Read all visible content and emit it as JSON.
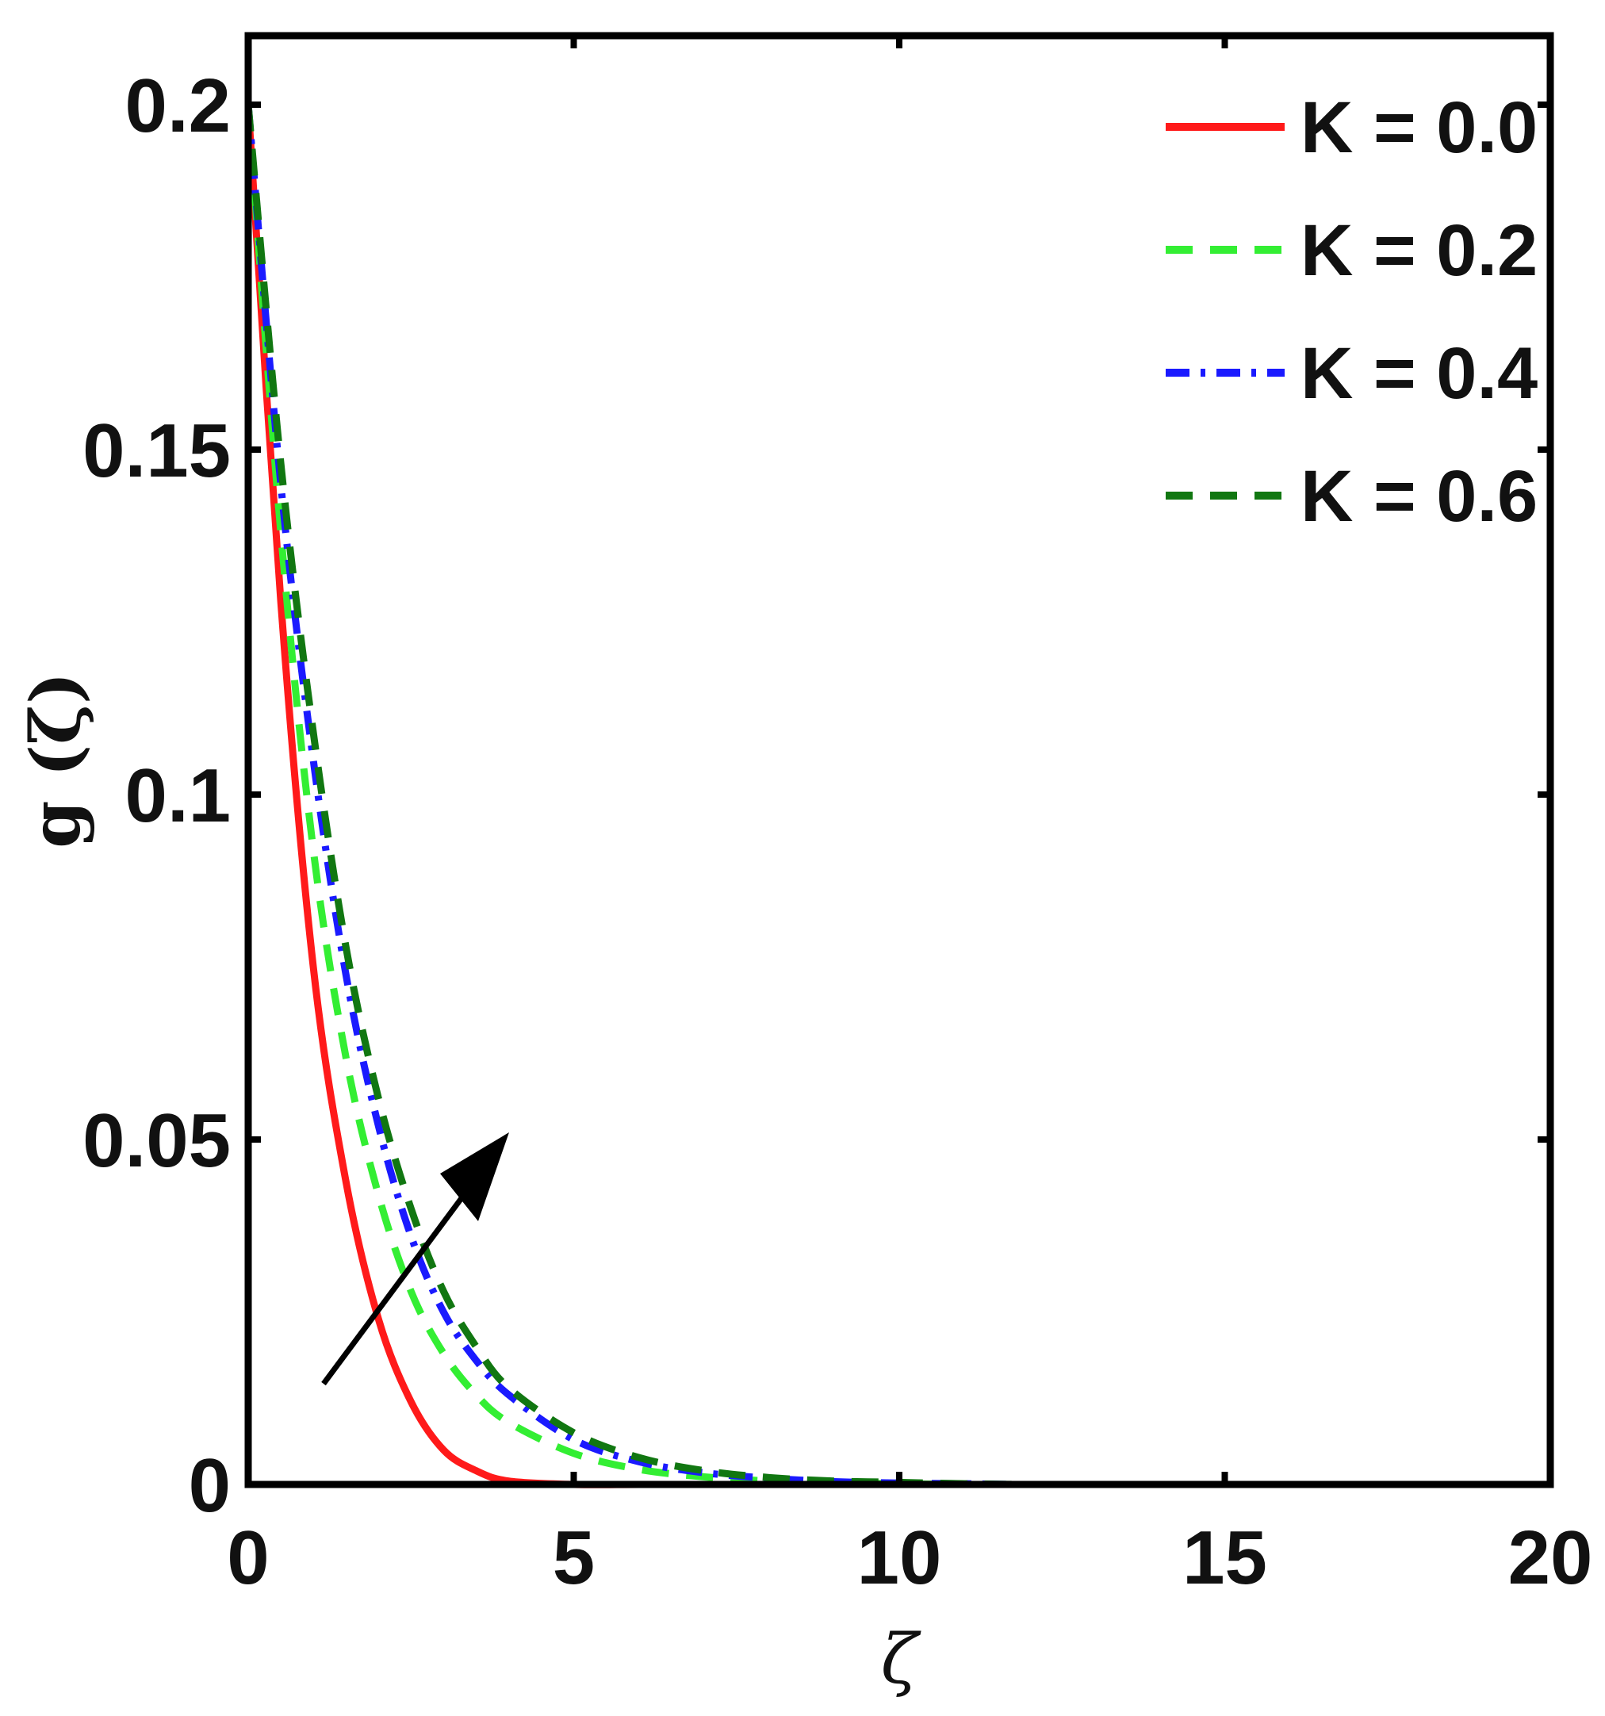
{
  "chart_data": {
    "type": "line",
    "title": "",
    "xlabel": "ζ",
    "ylabel": "g (ζ)",
    "xlim": [
      0,
      20
    ],
    "ylim": [
      0,
      0.21
    ],
    "xticks": [
      0,
      5,
      10,
      15,
      20
    ],
    "xtick_labels": [
      "0",
      "5",
      "10",
      "15",
      "20"
    ],
    "yticks": [
      0,
      0.05,
      0.1,
      0.15,
      0.2
    ],
    "ytick_labels": [
      "0",
      "0.05",
      "0.1",
      "0.15",
      "0.2"
    ],
    "grid": false,
    "legend_position": "top-right",
    "annotation": "arrow indicating increasing K",
    "x": [
      0,
      0.5,
      1,
      1.5,
      2,
      2.5,
      3,
      3.5,
      4,
      5,
      6,
      7,
      8,
      9,
      10,
      11,
      12,
      14,
      16,
      18,
      20
    ],
    "series": [
      {
        "name": "K = 0.0",
        "color": "#ff1a1a",
        "style": "solid",
        "values": [
          0.2,
          0.128,
          0.075,
          0.044,
          0.024,
          0.012,
          0.005,
          0.002,
          0.0005,
          0,
          0,
          0,
          0,
          0,
          0,
          0,
          0,
          0,
          0,
          0,
          0
        ]
      },
      {
        "name": "K = 0.2",
        "color": "#33ee33",
        "style": "dashed",
        "values": [
          0.2,
          0.138,
          0.092,
          0.062,
          0.042,
          0.028,
          0.019,
          0.013,
          0.009,
          0.0045,
          0.0022,
          0.0011,
          0.0005,
          0.0002,
          0.0001,
          0,
          0,
          0,
          0,
          0,
          0
        ]
      },
      {
        "name": "K = 0.4",
        "color": "#1a1aff",
        "style": "dashdot",
        "values": [
          0.2,
          0.145,
          0.105,
          0.074,
          0.052,
          0.036,
          0.025,
          0.018,
          0.013,
          0.0065,
          0.0033,
          0.0017,
          0.0009,
          0.0004,
          0.0002,
          0.0001,
          0,
          0,
          0,
          0,
          0
        ]
      },
      {
        "name": "K = 0.6",
        "color": "#117711",
        "style": "dashed",
        "values": [
          0.2,
          0.148,
          0.109,
          0.078,
          0.056,
          0.04,
          0.028,
          0.02,
          0.014,
          0.0075,
          0.0039,
          0.002,
          0.001,
          0.0005,
          0.0003,
          0.0001,
          0,
          0,
          0,
          0,
          0
        ]
      }
    ]
  }
}
